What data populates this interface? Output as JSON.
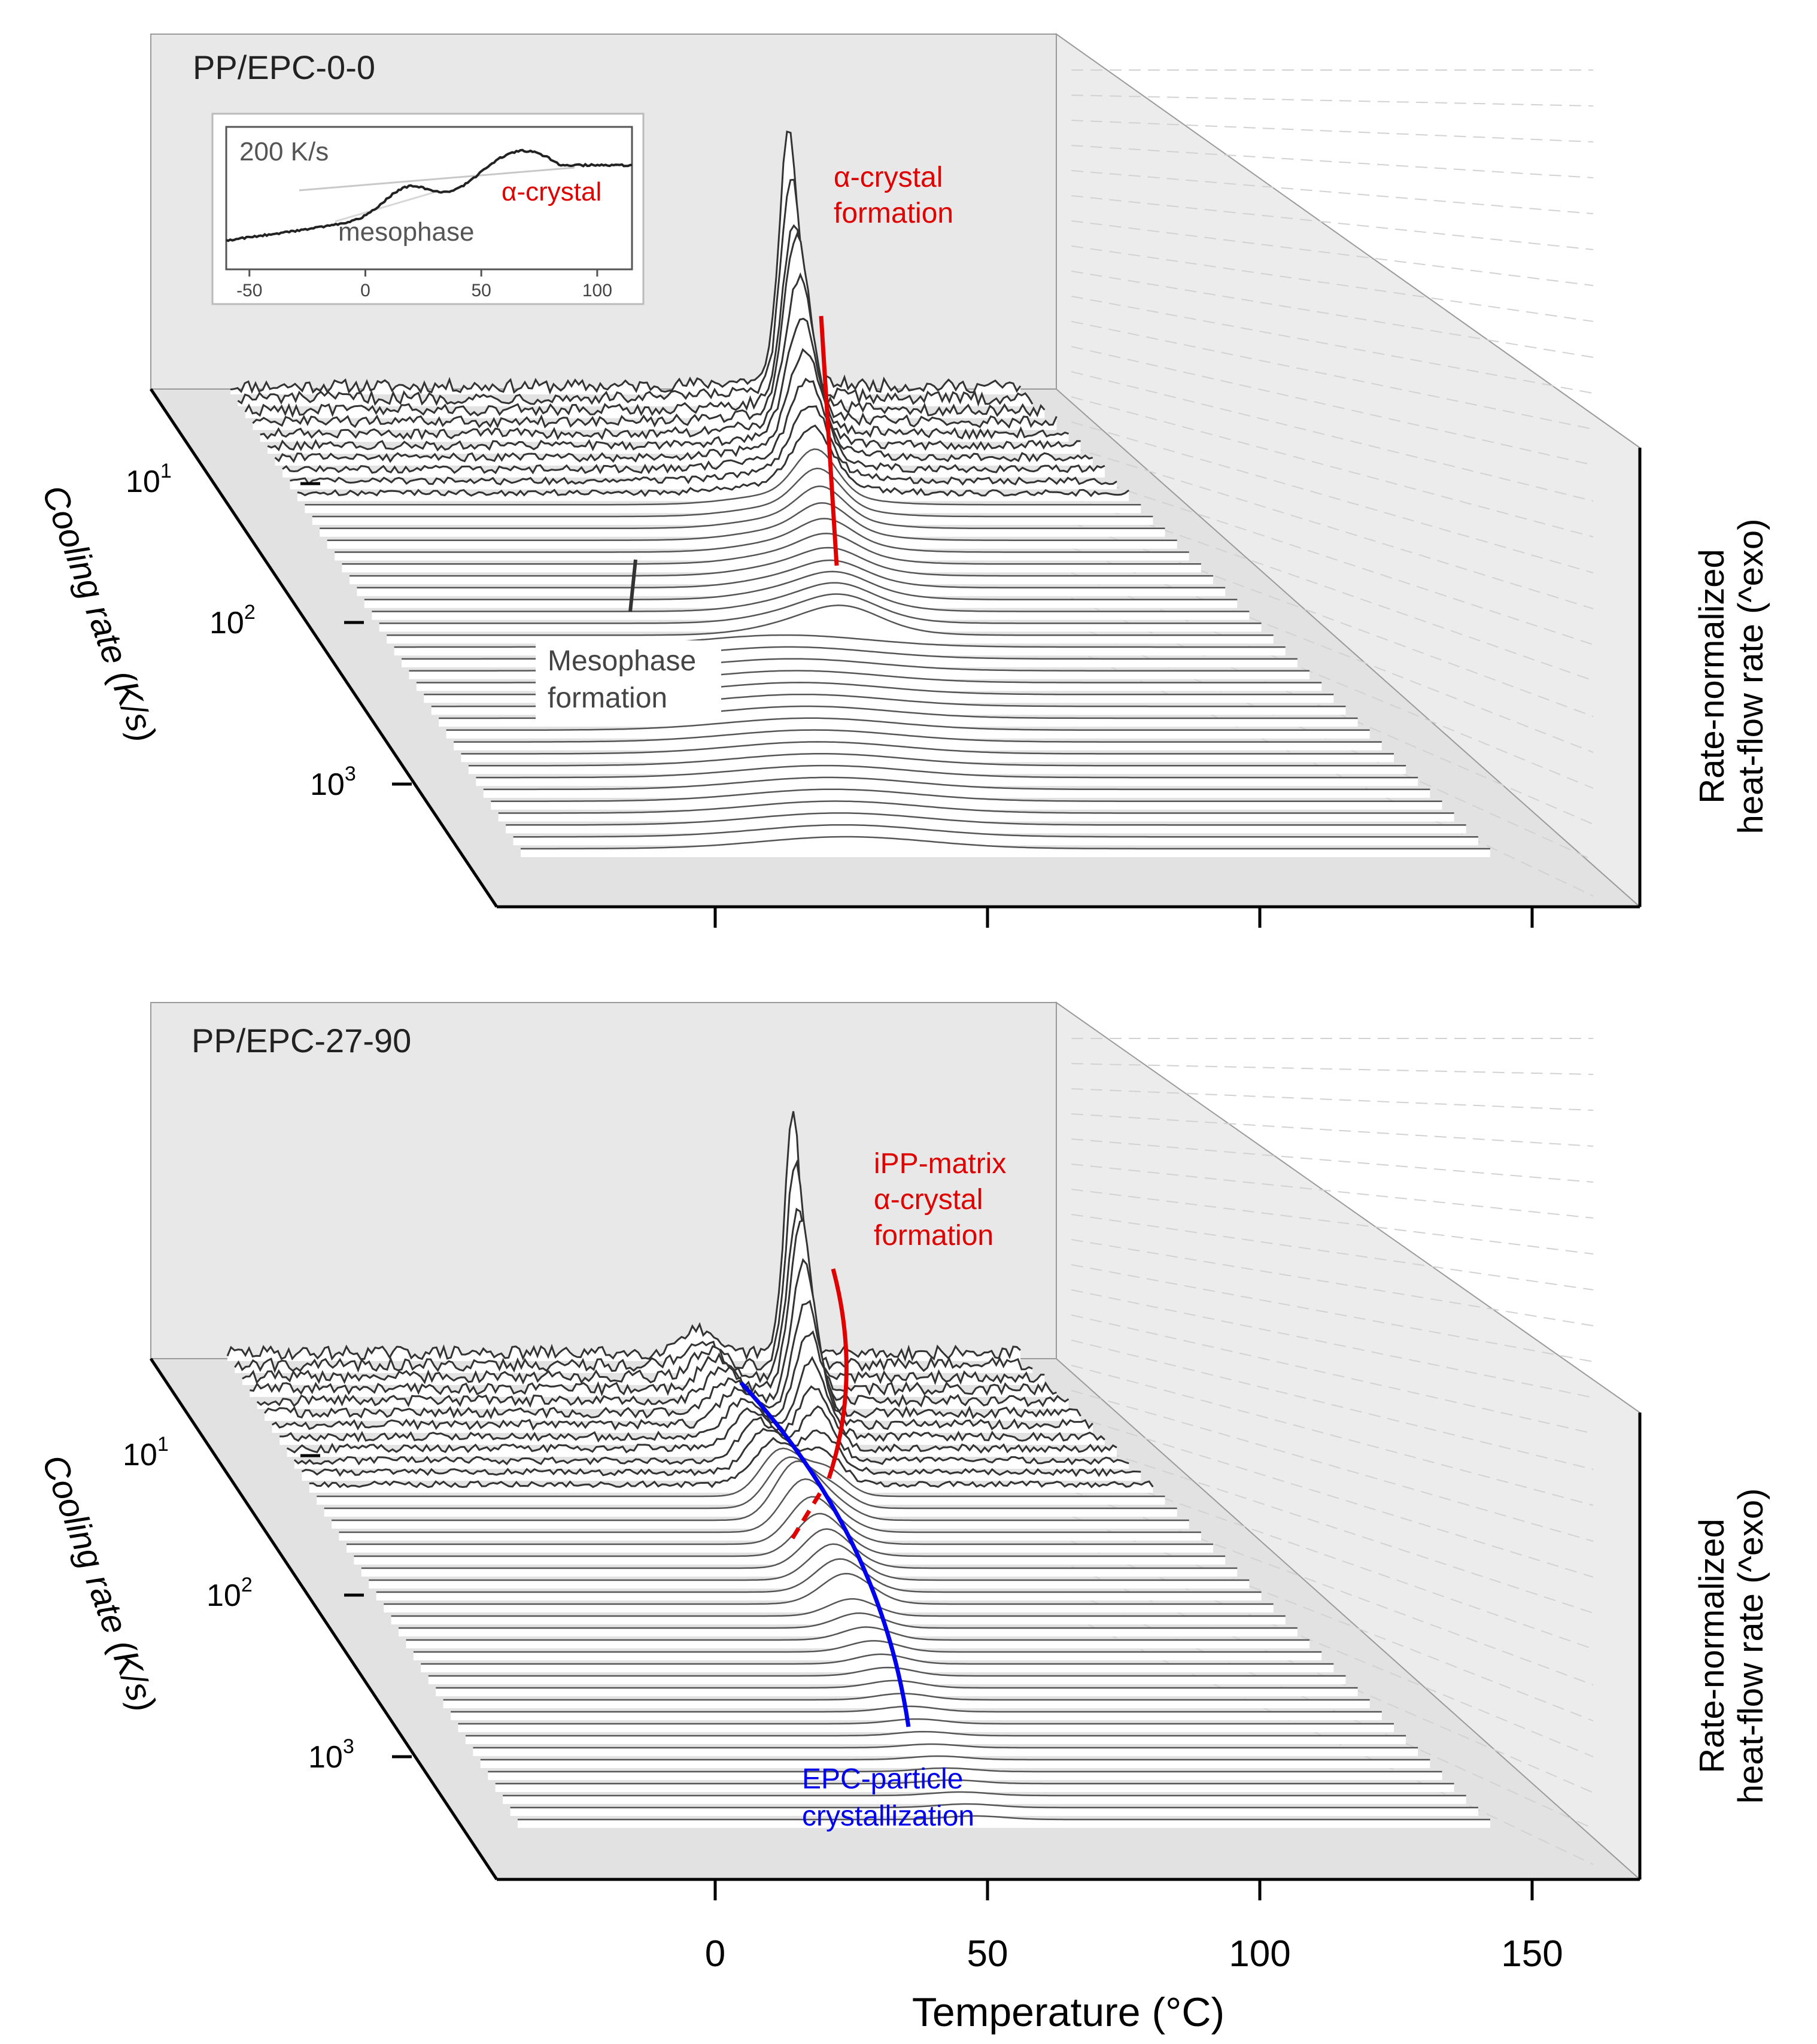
{
  "chart_data": [
    {
      "type": "waterfall",
      "panel_label": "PP/EPC-0-0",
      "x_ticks": [
        0,
        50,
        100,
        150
      ],
      "y_ticks": [
        "10",
        "10",
        "10"
      ],
      "y_tick_exponents": [
        "1",
        "2",
        "3"
      ],
      "xlabel": "Temperature (°C)",
      "ylabel": "Cooling rate (K/s)",
      "zlabel_line1": "Rate-normalized",
      "zlabel_line2": "heat-flow rate (^exo)",
      "series_count": 40,
      "peaks": [
        {
          "name": "α-crystal formation",
          "temperature_c": 20,
          "max_cooling_rate_kps": 100,
          "color": "#e00000"
        },
        {
          "name": "Mesophase formation",
          "temperature_c": 20,
          "min_cooling_rate_kps": 100,
          "color": "#333333"
        }
      ],
      "annotations": [
        {
          "text": "α-crystal",
          "color": "#e00000"
        },
        {
          "text": "formation",
          "color": "#e00000"
        },
        {
          "text": "Mesophase",
          "color": "#444444"
        },
        {
          "text": "formation",
          "color": "#444444"
        }
      ],
      "inset": {
        "label": "200 K/s",
        "x_ticks": [
          -50,
          0,
          50,
          100
        ],
        "x_range": [
          -60,
          115
        ],
        "annotations": [
          {
            "text": "α-crystal",
            "color": "#e00000"
          },
          {
            "text": "mesophase",
            "color": "#444444"
          }
        ]
      }
    },
    {
      "type": "waterfall",
      "panel_label": "PP/EPC-27-90",
      "x_ticks": [
        0,
        50,
        100,
        150
      ],
      "y_ticks": [
        "10",
        "10",
        "10"
      ],
      "y_tick_exponents": [
        "1",
        "2",
        "3"
      ],
      "xlabel": "Temperature (°C)",
      "ylabel": "Cooling rate (K/s)",
      "zlabel_line1": "Rate-normalized",
      "zlabel_line2": "heat-flow rate (^exo)",
      "series_count": 40,
      "peaks": [
        {
          "name": "iPP-matrix α-crystal formation",
          "temperature_c": 20,
          "color": "#e00000"
        },
        {
          "name": "EPC-particle crystallization",
          "temperature_c": 25,
          "color": "#0000ee"
        }
      ],
      "annotations": [
        {
          "text": "iPP-matrix",
          "color": "#e00000"
        },
        {
          "text": "α-crystal",
          "color": "#e00000"
        },
        {
          "text": "formation",
          "color": "#e00000"
        },
        {
          "text": "EPC-particle",
          "color": "#0000ee"
        },
        {
          "text": "crystallization",
          "color": "#0000ee"
        }
      ]
    }
  ],
  "axis_labels": {
    "x_ticks": [
      "0",
      "50",
      "100",
      "150"
    ],
    "xlabel": "Temperature (°C)"
  }
}
